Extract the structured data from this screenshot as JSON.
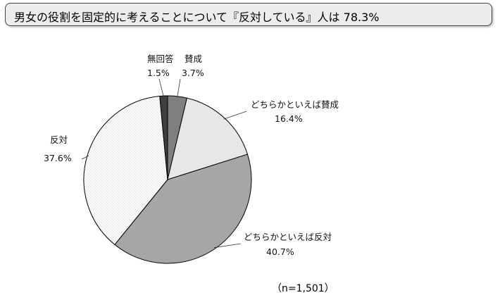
{
  "header": {
    "title": "男女の役割を固定的に考えることについて『反対している』人は 78.3%"
  },
  "chart_data": {
    "type": "pie",
    "start_angle_deg": 0,
    "direction": "clockwise",
    "slices": [
      {
        "label": "賛成",
        "value": 3.7,
        "value_label": "3.7%",
        "color": "#7f7f7f",
        "pattern": "none"
      },
      {
        "label": "どちらかといえば賛成",
        "value": 16.4,
        "value_label": "16.4%",
        "color": "#e7e7e7",
        "pattern": "none"
      },
      {
        "label": "どちらかといえば反対",
        "value": 40.7,
        "value_label": "40.7%",
        "color": "#a6a6a6",
        "pattern": "none"
      },
      {
        "label": "反対",
        "value": 37.6,
        "value_label": "37.6%",
        "color": "#fbfbfb",
        "pattern": "dots"
      },
      {
        "label": "無回答",
        "value": 1.5,
        "value_label": "1.5%",
        "color": "#3f3f3f",
        "pattern": "none"
      }
    ]
  },
  "note": {
    "sample_size": "（n=1,501）"
  }
}
